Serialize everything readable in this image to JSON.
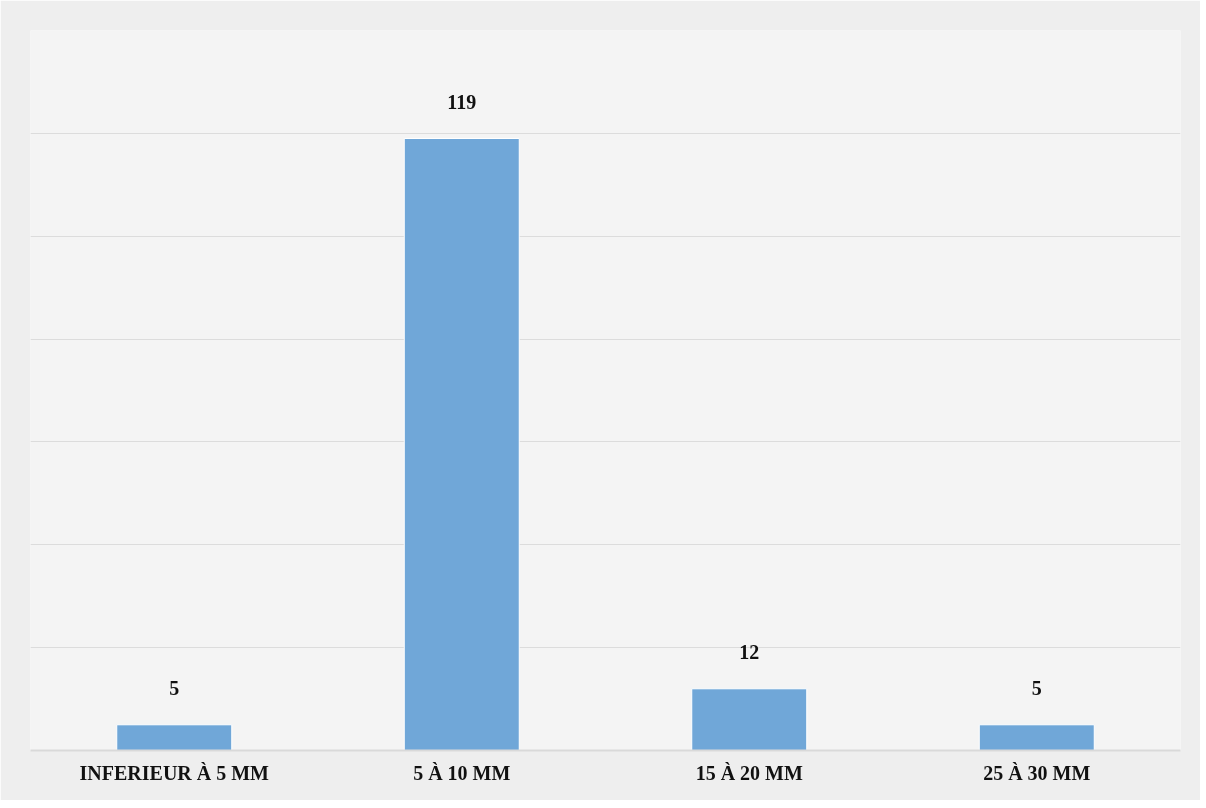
{
  "chart_data": {
    "type": "bar",
    "categories": [
      "INFERIEUR À 5 MM",
      "5 À 10 MM",
      "15 À 20 MM",
      "25 À 30 MM"
    ],
    "values": [
      5,
      119,
      12,
      5
    ],
    "color": "#70a7d8",
    "data_labels": true,
    "grid": "y",
    "tick_labels": "x",
    "ylim": [
      0,
      140
    ],
    "yticks": [
      {
        "value": 0,
        "label": null
      },
      {
        "value": 20,
        "label": null
      },
      {
        "value": 40,
        "label": null
      },
      {
        "value": 60,
        "label": null
      },
      {
        "value": 80,
        "label": null
      },
      {
        "value": 100,
        "label": null
      },
      {
        "value": 120,
        "label": null
      },
      {
        "value": 140,
        "label": null
      }
    ]
  }
}
